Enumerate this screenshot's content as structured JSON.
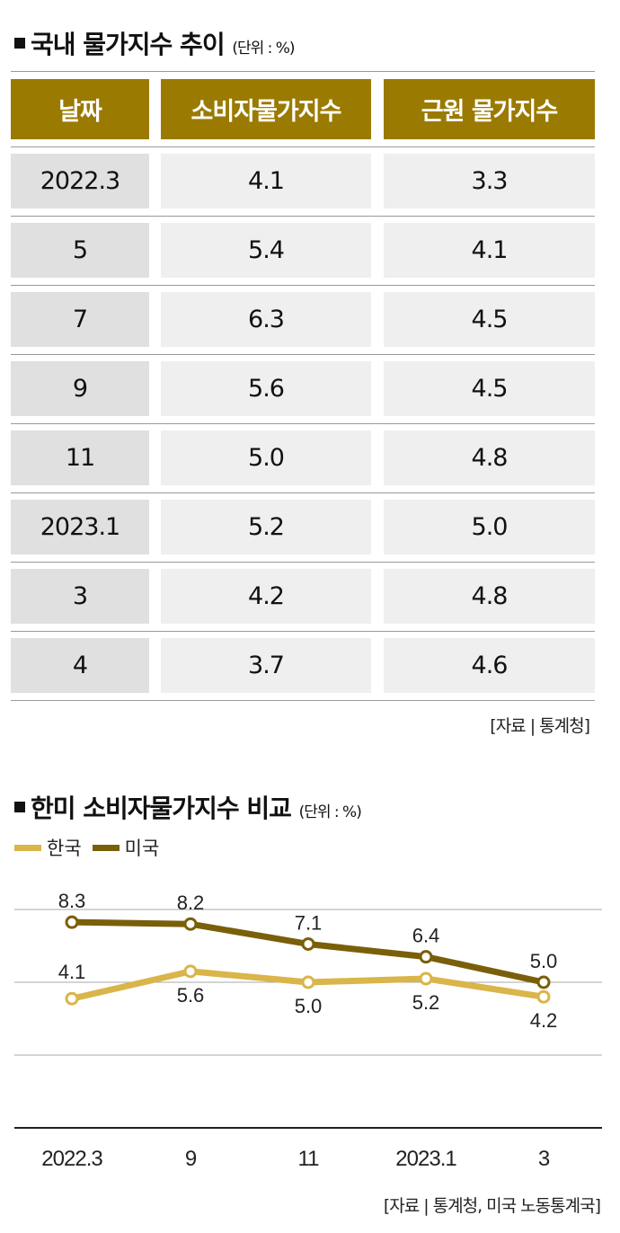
{
  "table_section": {
    "title": "국내 물가지수 추이",
    "unit": "(단위 : %)",
    "headers": [
      "날짜",
      "소비자물가지수",
      "근원 물가지수"
    ],
    "rows": [
      [
        "2022.3",
        "4.1",
        "3.3"
      ],
      [
        "5",
        "5.4",
        "4.1"
      ],
      [
        "7",
        "6.3",
        "4.5"
      ],
      [
        "9",
        "5.6",
        "4.5"
      ],
      [
        "11",
        "5.0",
        "4.8"
      ],
      [
        "2023.1",
        "5.2",
        "5.0"
      ],
      [
        "3",
        "4.2",
        "4.8"
      ],
      [
        "4",
        "3.7",
        "4.6"
      ]
    ],
    "source": "[자료 | 통계청]"
  },
  "chart_section": {
    "title": "한미 소비자물가지수 비교",
    "unit": "(단위 : %)",
    "source": "[자료 | 통계청, 미국 노동통계국]"
  },
  "colors": {
    "header": "#9a7a00",
    "korea": "#d9b54a",
    "us": "#7a5f0a"
  },
  "chart_data": {
    "type": "line",
    "title": "한미 소비자물가지수 비교",
    "categories": [
      "2022.3",
      "9",
      "11",
      "2023.1",
      "3"
    ],
    "series": [
      {
        "name": "한국",
        "values": [
          4.1,
          5.6,
          5.0,
          5.2,
          4.2
        ],
        "labels": [
          "4.1",
          "5.6",
          "5.0",
          "5.2",
          "4.2"
        ]
      },
      {
        "name": "미국",
        "values": [
          8.3,
          8.2,
          7.1,
          6.4,
          5.0
        ],
        "labels": [
          "8.3",
          "8.2",
          "7.1",
          "6.4",
          "5.0"
        ]
      }
    ],
    "ylim": [
      -3,
      9
    ],
    "grid": true,
    "legend": "top-left"
  }
}
